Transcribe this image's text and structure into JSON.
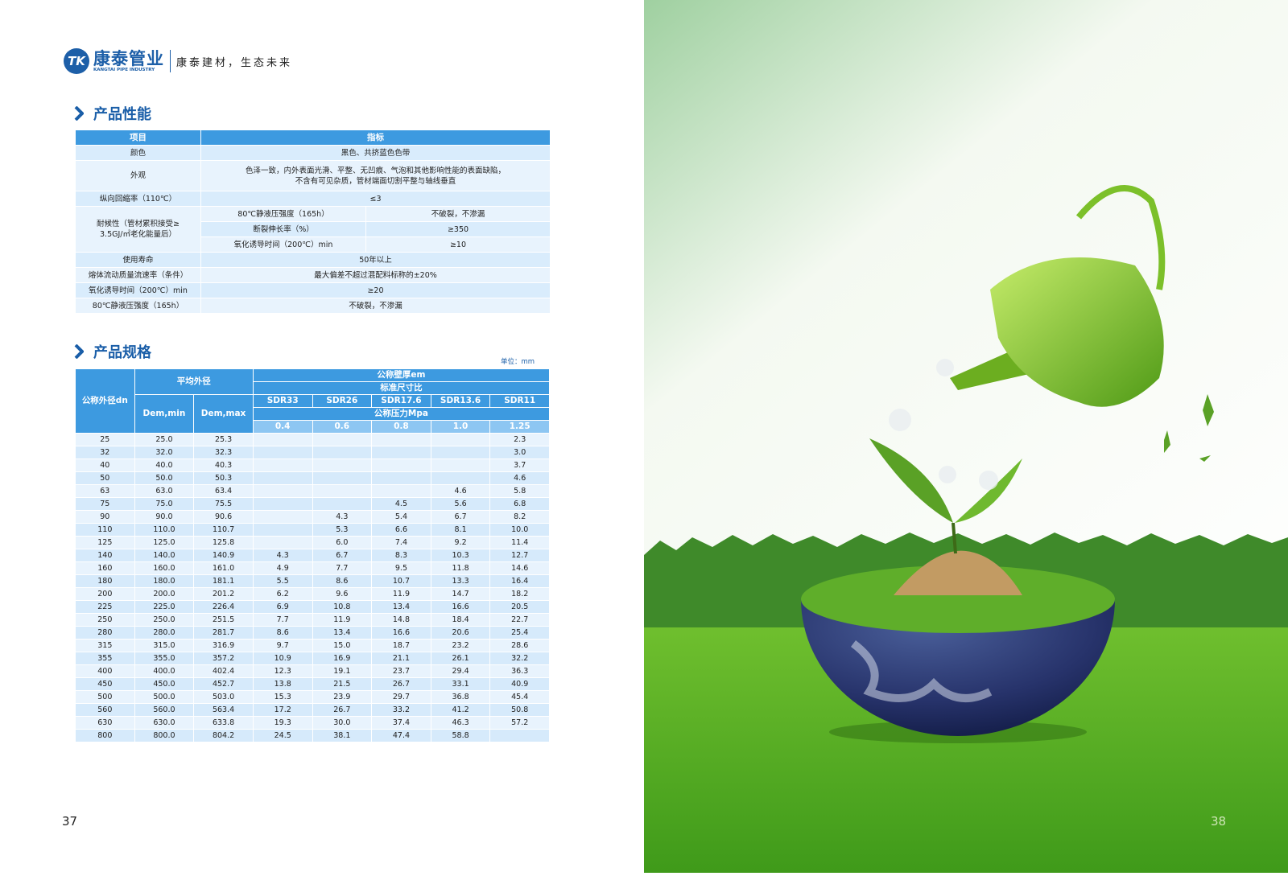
{
  "header": {
    "logo": "TK",
    "brand": "康泰管业",
    "brand_en": "KANGTAI PIPE INDUSTRY",
    "slogan": "康泰建材，生态未来"
  },
  "performance": {
    "title": "产品性能",
    "columns": [
      "项目",
      "指标"
    ],
    "rows": [
      {
        "item": [
          "颜色"
        ],
        "value": [
          "黑色、共挤蓝色色带"
        ]
      },
      {
        "item": [
          "外观"
        ],
        "value": [
          "色泽一致，内外表面光滑、平整、无凹痕、气泡和其他影响性能的表面缺陷，",
          "不含有可见杂质，管材端面切割平整与轴线垂直"
        ]
      },
      {
        "item": [
          "纵向回缩率（110℃）"
        ],
        "value": [
          "≤3"
        ]
      },
      {
        "item": [
          "耐候性（管材累积接受≥",
          "3.5GJ/㎡老化能量后）"
        ],
        "sub": [
          [
            "80℃静液压强度（165h）",
            "不破裂，不渗漏"
          ],
          [
            "断裂伸长率（%）",
            "≥350"
          ],
          [
            "氧化诱导时间（200℃）min",
            "≥10"
          ]
        ]
      },
      {
        "item": [
          "使用寿命"
        ],
        "value": [
          "50年以上"
        ]
      },
      {
        "item": [
          "熔体流动质量流速率（条件）"
        ],
        "value": [
          "最大偏差不超过混配料标称的±20%"
        ]
      },
      {
        "item": [
          "氧化诱导时间（200℃）min"
        ],
        "value": [
          "≥20"
        ]
      },
      {
        "item": [
          "80℃静液压强度（165h）"
        ],
        "value": [
          "不破裂，不渗漏"
        ]
      }
    ]
  },
  "specs": {
    "title": "产品规格",
    "unit": "单位：mm",
    "headers": {
      "dn": "公称外径dn",
      "mean_od": "平均外径",
      "dem_min": "Dem,min",
      "dem_max": "Dem,max",
      "wall": "公称壁厚em",
      "sdr_label": "标准尺寸比",
      "sdr": [
        "SDR33",
        "SDR26",
        "SDR17.6",
        "SDR13.6",
        "SDR11"
      ],
      "pressure_label": "公称压力Mpa",
      "pressure": [
        "0.4",
        "0.6",
        "0.8",
        "1.0",
        "1.25"
      ]
    },
    "rows": [
      [
        "25",
        "25.0",
        "25.3",
        null,
        null,
        null,
        null,
        "2.3"
      ],
      [
        "32",
        "32.0",
        "32.3",
        null,
        null,
        null,
        null,
        "3.0"
      ],
      [
        "40",
        "40.0",
        "40.3",
        null,
        null,
        null,
        null,
        "3.7"
      ],
      [
        "50",
        "50.0",
        "50.3",
        null,
        null,
        null,
        null,
        "4.6"
      ],
      [
        "63",
        "63.0",
        "63.4",
        null,
        null,
        null,
        "4.6",
        "5.8"
      ],
      [
        "75",
        "75.0",
        "75.5",
        null,
        null,
        "4.5",
        "5.6",
        "6.8"
      ],
      [
        "90",
        "90.0",
        "90.6",
        null,
        "4.3",
        "5.4",
        "6.7",
        "8.2"
      ],
      [
        "110",
        "110.0",
        "110.7",
        null,
        "5.3",
        "6.6",
        "8.1",
        "10.0"
      ],
      [
        "125",
        "125.0",
        "125.8",
        null,
        "6.0",
        "7.4",
        "9.2",
        "11.4"
      ],
      [
        "140",
        "140.0",
        "140.9",
        "4.3",
        "6.7",
        "8.3",
        "10.3",
        "12.7"
      ],
      [
        "160",
        "160.0",
        "161.0",
        "4.9",
        "7.7",
        "9.5",
        "11.8",
        "14.6"
      ],
      [
        "180",
        "180.0",
        "181.1",
        "5.5",
        "8.6",
        "10.7",
        "13.3",
        "16.4"
      ],
      [
        "200",
        "200.0",
        "201.2",
        "6.2",
        "9.6",
        "11.9",
        "14.7",
        "18.2"
      ],
      [
        "225",
        "225.0",
        "226.4",
        "6.9",
        "10.8",
        "13.4",
        "16.6",
        "20.5"
      ],
      [
        "250",
        "250.0",
        "251.5",
        "7.7",
        "11.9",
        "14.8",
        "18.4",
        "22.7"
      ],
      [
        "280",
        "280.0",
        "281.7",
        "8.6",
        "13.4",
        "16.6",
        "20.6",
        "25.4"
      ],
      [
        "315",
        "315.0",
        "316.9",
        "9.7",
        "15.0",
        "18.7",
        "23.2",
        "28.6"
      ],
      [
        "355",
        "355.0",
        "357.2",
        "10.9",
        "16.9",
        "21.1",
        "26.1",
        "32.2"
      ],
      [
        "400",
        "400.0",
        "402.4",
        "12.3",
        "19.1",
        "23.7",
        "29.4",
        "36.3"
      ],
      [
        "450",
        "450.0",
        "452.7",
        "13.8",
        "21.5",
        "26.7",
        "33.1",
        "40.9"
      ],
      [
        "500",
        "500.0",
        "503.0",
        "15.3",
        "23.9",
        "29.7",
        "36.8",
        "45.4"
      ],
      [
        "560",
        "560.0",
        "563.4",
        "17.2",
        "26.7",
        "33.2",
        "41.2",
        "50.8"
      ],
      [
        "630",
        "630.0",
        "633.8",
        "19.3",
        "30.0",
        "37.4",
        "46.3",
        "57.2"
      ],
      [
        "800",
        "800.0",
        "804.2",
        "24.5",
        "38.1",
        "47.4",
        "58.8",
        null
      ]
    ]
  },
  "page_numbers": [
    "37",
    "38"
  ]
}
